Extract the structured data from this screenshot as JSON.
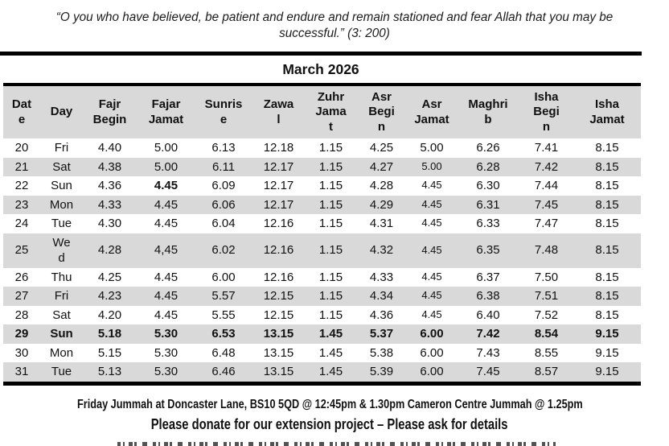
{
  "colors": {
    "stripe_gray": "#d9d9d9",
    "rule_black": "#000000",
    "text": "#111111"
  },
  "quote": {
    "text": "“O you who have believed, be patient and endure and remain stationed and fear Allah that you may be successful.” (3: 200)"
  },
  "title": "March 2026",
  "table": {
    "columns": [
      {
        "id": "date",
        "label": "Dat\ne"
      },
      {
        "id": "day",
        "label": "Day"
      },
      {
        "id": "fajr-begin",
        "label": "Fajr\nBegin"
      },
      {
        "id": "fajar-jamat",
        "label": "Fajar\nJamat"
      },
      {
        "id": "sunrise",
        "label": "Sunris\ne"
      },
      {
        "id": "zawal",
        "label": "Zawa\nl"
      },
      {
        "id": "zuhr-jamat",
        "label": "Zuhr\nJama\nt"
      },
      {
        "id": "asr-begin",
        "label": "Asr\nBegi\nn"
      },
      {
        "id": "asr-jamat",
        "label": "Asr\nJamat"
      },
      {
        "id": "maghrib",
        "label": "Maghri\nb"
      },
      {
        "id": "isha-begin",
        "label": "Isha\nBegi\nn"
      },
      {
        "id": "isha-jamat",
        "label": "Isha\nJamat"
      }
    ],
    "rows": [
      {
        "cells": [
          "20",
          "Fri",
          "4.40",
          "5.00",
          "6.13",
          "12.18",
          "1.15",
          "4.25",
          "5.00",
          "6.26",
          "7.41",
          "8.15"
        ]
      },
      {
        "cells": [
          "21",
          "Sat",
          "4.38",
          "5.00",
          "6.11",
          "12.17",
          "1.15",
          "4.27",
          "5.00",
          "6.28",
          "7.42",
          "8.15"
        ],
        "cell_styles": {
          "8": "small"
        }
      },
      {
        "cells": [
          "22",
          "Sun",
          "4.36",
          "4.45",
          "6.09",
          "12.17",
          "1.15",
          "4.28",
          "4.45",
          "6.30",
          "7.44",
          "8.15"
        ],
        "cell_styles": {
          "3": "bold",
          "8": "small"
        }
      },
      {
        "cells": [
          "23",
          "Mon",
          "4.33",
          "4.45",
          "6.06",
          "12.17",
          "1.15",
          "4.29",
          "4.45",
          "6.31",
          "7.45",
          "8.15"
        ],
        "cell_styles": {
          "8": "small"
        }
      },
      {
        "cells": [
          "24",
          "Tue",
          "4.30",
          "4.45",
          "6.04",
          "12.16",
          "1.15",
          "4.31",
          "4.45",
          "6.33",
          "7.47",
          "8.15"
        ],
        "cell_styles": {
          "8": "small"
        }
      },
      {
        "cells": [
          "25",
          "We\nd",
          "4.28",
          "4,45",
          "6.02",
          "12.16",
          "1.15",
          "4.32",
          "4.45",
          "6.35",
          "7.48",
          "8.15"
        ],
        "cell_styles": {
          "8": "small"
        }
      },
      {
        "cells": [
          "26",
          "Thu",
          "4.25",
          "4.45",
          "6.00",
          "12.16",
          "1.15",
          "4.33",
          "4.45",
          "6.37",
          "7.50",
          "8.15"
        ],
        "cell_styles": {
          "8": "small"
        }
      },
      {
        "cells": [
          "27",
          "Fri",
          "4.23",
          "4.45",
          "5.57",
          "12.15",
          "1.15",
          "4.34",
          "4.45",
          "6.38",
          "7.51",
          "8.15"
        ],
        "cell_styles": {
          "8": "small"
        }
      },
      {
        "cells": [
          "28",
          "Sat",
          "4.20",
          "4.45",
          "5.55",
          "12.15",
          "1.15",
          "4.36",
          "4.45",
          "6.40",
          "7.52",
          "8.15"
        ],
        "cell_styles": {
          "8": "small"
        }
      },
      {
        "cells": [
          "29",
          "Sun",
          "5.18",
          "5.30",
          "6.53",
          "13.15",
          "1.45",
          "5.37",
          "6.00",
          "7.42",
          "8.54",
          "9.15"
        ],
        "bold": true
      },
      {
        "cells": [
          "30",
          "Mon",
          "5.15",
          "5.30",
          "6.48",
          "13.15",
          "1.45",
          "5.38",
          "6.00",
          "7.43",
          "8.55",
          "9.15"
        ]
      },
      {
        "cells": [
          "31",
          "Tue",
          "5.13",
          "5.30",
          "6.46",
          "13.15",
          "1.45",
          "5.39",
          "6.00",
          "7.45",
          "8.57",
          "9.15"
        ]
      }
    ]
  },
  "footer": {
    "jummah_line": "Friday Jummah at Doncaster Lane, BS10 5QD @ 12:45pm & 1.30pm Cameron Centre Jummah @ 1.25pm",
    "donation_line": "Please donate for our extension project – Please ask for details"
  }
}
